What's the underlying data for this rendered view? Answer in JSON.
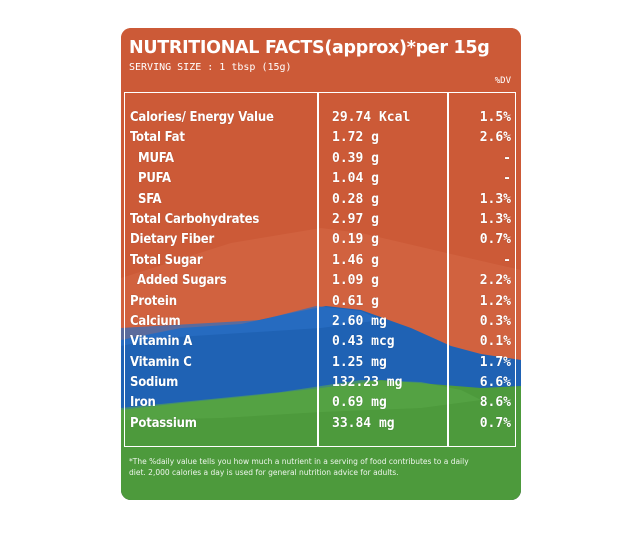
{
  "label": {
    "title": "NUTRITIONAL FACTS(approx)*per 15g",
    "serving_size": "SERVING SIZE : 1 tbsp (15g)",
    "dv_header": "%DV",
    "colors": {
      "orange": "#cc5a37",
      "blue": "#1f62b4",
      "green": "#4d9a3c",
      "text": "#ffffff"
    },
    "rows": [
      {
        "name": "Calories/ Energy Value",
        "value": "29.74 Kcal",
        "dv": "1.5%",
        "indent": false
      },
      {
        "name": "Total Fat",
        "value": "1.72 g",
        "dv": "2.6%",
        "indent": false
      },
      {
        "name": "MUFA",
        "value": "0.39 g",
        "dv": "-",
        "indent": true
      },
      {
        "name": "PUFA",
        "value": "1.04 g",
        "dv": "-",
        "indent": true
      },
      {
        "name": "SFA",
        "value": "0.28 g",
        "dv": "1.3%",
        "indent": true
      },
      {
        "name": "Total Carbohydrates",
        "value": "2.97 g",
        "dv": "1.3%",
        "indent": false
      },
      {
        "name": "Dietary Fiber",
        "value": "0.19 g",
        "dv": "0.7%",
        "indent": false
      },
      {
        "name": "Total Sugar",
        "value": "1.46 g",
        "dv": "-",
        "indent": false
      },
      {
        "name": "Added Sugars",
        "value": "1.09 g",
        "dv": "2.2%",
        "indent": true
      },
      {
        "name": "Protein",
        "value": "0.61 g",
        "dv": "1.2%",
        "indent": false
      },
      {
        "name": "Calcium",
        "value": "2.60 mg",
        "dv": "0.3%",
        "indent": false
      },
      {
        "name": "Vitamin A",
        "value": "0.43 mcg",
        "dv": "0.1%",
        "indent": false
      },
      {
        "name": "Vitamin C",
        "value": "1.25 mg",
        "dv": "1.7%",
        "indent": false
      },
      {
        "name": "Sodium",
        "value": "132.23 mg",
        "dv": "6.6%",
        "indent": false
      },
      {
        "name": "Iron",
        "value": "0.69 mg",
        "dv": "8.6%",
        "indent": false
      },
      {
        "name": "Potassium",
        "value": "33.84 mg",
        "dv": "0.7%",
        "indent": false
      }
    ],
    "footnote": "*The %daily value tells you how much a nutrient in a serving of food contributes to a daily diet. 2,000 calories a day is used for general nutrition advice for adults."
  }
}
